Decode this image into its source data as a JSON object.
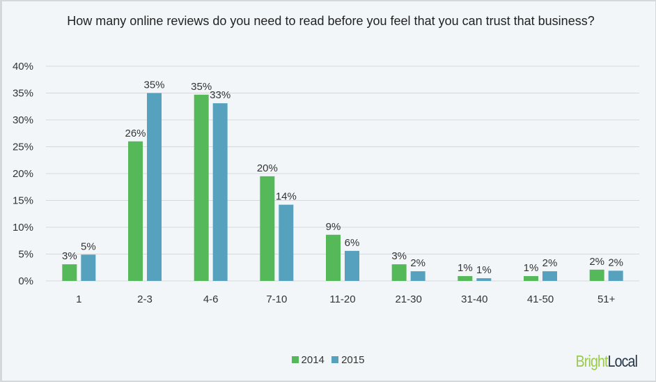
{
  "chart_data": {
    "type": "bar",
    "title": "How many online reviews do you need to read before you feel that you can trust that business?",
    "categories": [
      "1",
      "2-3",
      "4-6",
      "7-10",
      "11-20",
      "21-30",
      "31-40",
      "41-50",
      "51+"
    ],
    "series": [
      {
        "name": "2014",
        "color": "#55b95a",
        "values": [
          3.1,
          26,
          34.7,
          19.5,
          8.6,
          3.1,
          0.9,
          0.9,
          2.1
        ],
        "labels": [
          "3%",
          "26%",
          "35%",
          "20%",
          "9%",
          "3%",
          "1%",
          "1%",
          "2%"
        ]
      },
      {
        "name": "2015",
        "color": "#56a1bd",
        "values": [
          4.9,
          35,
          33.1,
          14.2,
          5.6,
          1.8,
          0.5,
          1.8,
          1.9
        ],
        "labels": [
          "5%",
          "35%",
          "33%",
          "14%",
          "6%",
          "2%",
          "1%",
          "2%",
          "2%"
        ]
      }
    ],
    "yticks": [
      "0%",
      "5%",
      "10%",
      "15%",
      "20%",
      "25%",
      "30%",
      "35%",
      "40%"
    ],
    "ylim": [
      0,
      40
    ],
    "grid": true,
    "legend_position": "bottom"
  },
  "logo": {
    "part1": "Bright",
    "part2": "Local",
    "color1": "#9bc94f",
    "color2": "#253445"
  }
}
